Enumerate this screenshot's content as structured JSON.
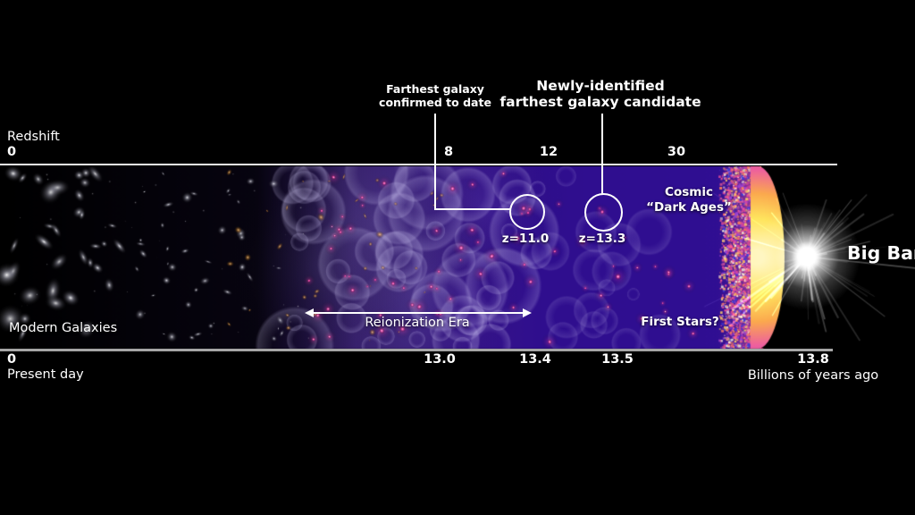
{
  "annotations": {
    "farthest_confirmed": [
      "Farthest galaxy",
      "confirmed to date"
    ],
    "newly_identified": [
      "Newly-identified",
      "farthest galaxy candidate"
    ]
  },
  "redshift_axis": {
    "title": "Redshift",
    "origin": "0",
    "ticks": [
      "8",
      "12",
      "30"
    ]
  },
  "time_axis": {
    "origin": "0",
    "origin_caption": "Present day",
    "ticks": [
      "13.0",
      "13.4",
      "13.5",
      "13.8"
    ],
    "unit_caption": "Billions of years ago"
  },
  "region_labels": {
    "modern_galaxies": "Modern Galaxies",
    "reionization_era": "Reionization Era",
    "cosmic_dark_ages": [
      "Cosmic",
      "“Dark Ages”"
    ],
    "first_stars": "First Stars?",
    "big_bang": "Big Bang"
  },
  "galaxy_markers": [
    {
      "redshift_label": "z=11.0"
    },
    {
      "redshift_label": "z=13.3"
    }
  ],
  "colors": {
    "deep_space_purple": "#2f0e92",
    "cmb_pink": "#e0489a",
    "big_bang_yellow": "#ffe55e",
    "top_axis": "#efefef",
    "bottom_axis": "#a6a6a6"
  }
}
